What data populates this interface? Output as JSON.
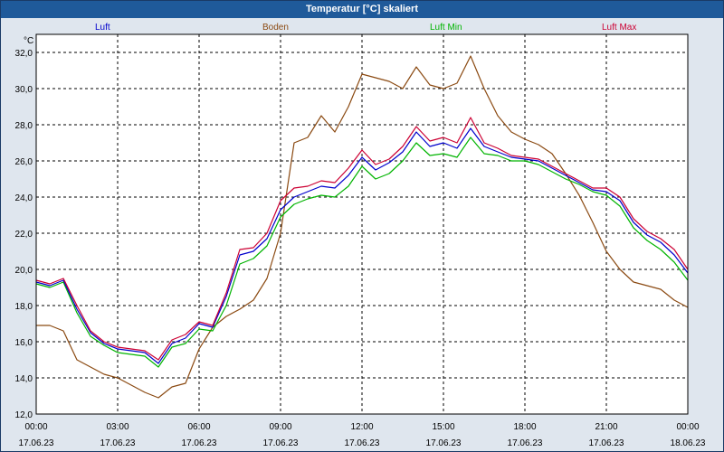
{
  "window": {
    "title": "Temperatur [°C] skaliert"
  },
  "colors": {
    "luft": "#0000cc",
    "boden": "#8b4a12",
    "luft_min": "#00b400",
    "luft_max": "#cc0033",
    "grid": "#000000",
    "plot_bg": "#ffffff"
  },
  "chart_data": {
    "type": "line",
    "title": "Temperatur [°C] skaliert",
    "ylabel": "°C",
    "xlabel": "",
    "ylim": [
      12,
      33
    ],
    "xlim": [
      0,
      24
    ],
    "yticks": [
      "12,0",
      "14,0",
      "16,0",
      "18,0",
      "20,0",
      "22,0",
      "24,0",
      "26,0",
      "28,0",
      "30,0",
      "32,0"
    ],
    "xticks": [
      {
        "time": "00:00",
        "date": "17.06.23"
      },
      {
        "time": "03:00",
        "date": "17.06.23"
      },
      {
        "time": "06:00",
        "date": "17.06.23"
      },
      {
        "time": "09:00",
        "date": "17.06.23"
      },
      {
        "time": "12:00",
        "date": "17.06.23"
      },
      {
        "time": "15:00",
        "date": "17.06.23"
      },
      {
        "time": "18:00",
        "date": "17.06.23"
      },
      {
        "time": "21:00",
        "date": "17.06.23"
      },
      {
        "time": "00:00",
        "date": "18.06.23"
      }
    ],
    "grid": true,
    "legend_position": "top",
    "series": [
      {
        "name": "Luft",
        "color": "#0000cc",
        "x": [
          0,
          0.5,
          1,
          1.5,
          2,
          2.5,
          3,
          3.5,
          4,
          4.5,
          5,
          5.5,
          6,
          6.5,
          7,
          7.5,
          8,
          8.5,
          9,
          9.5,
          10,
          10.5,
          11,
          11.5,
          12,
          12.5,
          13,
          13.5,
          14,
          14.5,
          15,
          15.5,
          16,
          16.5,
          17,
          17.5,
          18,
          18.5,
          19,
          19.5,
          20,
          20.5,
          21,
          21.5,
          22,
          22.5,
          23,
          23.5,
          24
        ],
        "y": [
          19.3,
          19.1,
          19.4,
          17.8,
          16.5,
          15.9,
          15.6,
          15.5,
          15.4,
          14.8,
          15.9,
          16.2,
          17.0,
          16.8,
          18.5,
          20.8,
          21.0,
          21.7,
          23.3,
          24.0,
          24.3,
          24.6,
          24.5,
          25.2,
          26.2,
          25.5,
          25.9,
          26.5,
          27.6,
          26.8,
          27.0,
          26.7,
          27.8,
          26.8,
          26.5,
          26.2,
          26.1,
          26.0,
          25.6,
          25.2,
          24.8,
          24.4,
          24.3,
          23.8,
          22.6,
          21.9,
          21.5,
          20.8,
          19.8
        ]
      },
      {
        "name": "Boden",
        "color": "#8b4a12",
        "x": [
          0,
          0.5,
          1,
          1.5,
          2,
          2.5,
          3,
          3.5,
          4,
          4.5,
          5,
          5.5,
          6,
          6.5,
          7,
          7.5,
          8,
          8.5,
          9,
          9.5,
          10,
          10.5,
          11,
          11.5,
          12,
          12.5,
          13,
          13.5,
          14,
          14.5,
          15,
          15.5,
          16,
          16.5,
          17,
          17.5,
          18,
          18.5,
          19,
          19.5,
          20,
          20.5,
          21,
          21.5,
          22,
          22.5,
          23,
          23.5,
          24
        ],
        "y": [
          16.9,
          16.9,
          16.6,
          15.0,
          14.6,
          14.2,
          14.0,
          13.6,
          13.2,
          12.9,
          13.5,
          13.7,
          15.6,
          16.8,
          17.4,
          17.8,
          18.3,
          19.5,
          22.0,
          27.0,
          27.3,
          28.5,
          27.6,
          29.0,
          30.8,
          30.6,
          30.4,
          30.0,
          31.2,
          30.2,
          30.0,
          30.3,
          31.8,
          30.0,
          28.5,
          27.6,
          27.2,
          26.9,
          26.4,
          25.3,
          24.1,
          22.6,
          21.0,
          20.0,
          19.3,
          19.1,
          18.9,
          18.3,
          17.9
        ]
      },
      {
        "name": "Luft Min",
        "color": "#00b400",
        "x": [
          0,
          0.5,
          1,
          1.5,
          2,
          2.5,
          3,
          3.5,
          4,
          4.5,
          5,
          5.5,
          6,
          6.5,
          7,
          7.5,
          8,
          8.5,
          9,
          9.5,
          10,
          10.5,
          11,
          11.5,
          12,
          12.5,
          13,
          13.5,
          14,
          14.5,
          15,
          15.5,
          16,
          16.5,
          17,
          17.5,
          18,
          18.5,
          19,
          19.5,
          20,
          20.5,
          21,
          21.5,
          22,
          22.5,
          23,
          23.5,
          24
        ],
        "y": [
          19.2,
          19.0,
          19.3,
          17.6,
          16.3,
          15.8,
          15.4,
          15.3,
          15.2,
          14.6,
          15.7,
          15.9,
          16.7,
          16.6,
          18.0,
          20.3,
          20.6,
          21.3,
          22.9,
          23.6,
          23.9,
          24.1,
          24.0,
          24.6,
          25.7,
          25.0,
          25.3,
          26.0,
          27.0,
          26.3,
          26.4,
          26.2,
          27.3,
          26.4,
          26.3,
          26.0,
          26.0,
          25.8,
          25.4,
          25.0,
          24.7,
          24.3,
          24.1,
          23.5,
          22.3,
          21.6,
          21.1,
          20.4,
          19.4
        ]
      },
      {
        "name": "Luft Max",
        "color": "#cc0033",
        "x": [
          0,
          0.5,
          1,
          1.5,
          2,
          2.5,
          3,
          3.5,
          4,
          4.5,
          5,
          5.5,
          6,
          6.5,
          7,
          7.5,
          8,
          8.5,
          9,
          9.5,
          10,
          10.5,
          11,
          11.5,
          12,
          12.5,
          13,
          13.5,
          14,
          14.5,
          15,
          15.5,
          16,
          16.5,
          17,
          17.5,
          18,
          18.5,
          19,
          19.5,
          20,
          20.5,
          21,
          21.5,
          22,
          22.5,
          23,
          23.5,
          24
        ],
        "y": [
          19.4,
          19.2,
          19.5,
          18.0,
          16.6,
          16.0,
          15.7,
          15.6,
          15.5,
          15.0,
          16.1,
          16.4,
          17.1,
          16.9,
          18.7,
          21.1,
          21.2,
          22.0,
          23.8,
          24.5,
          24.6,
          24.9,
          24.8,
          25.6,
          26.6,
          25.8,
          26.1,
          26.8,
          27.9,
          27.1,
          27.3,
          27.0,
          28.4,
          27.0,
          26.7,
          26.3,
          26.2,
          26.1,
          25.7,
          25.3,
          24.9,
          24.5,
          24.5,
          24.0,
          22.8,
          22.1,
          21.7,
          21.1,
          20.0
        ]
      }
    ]
  }
}
